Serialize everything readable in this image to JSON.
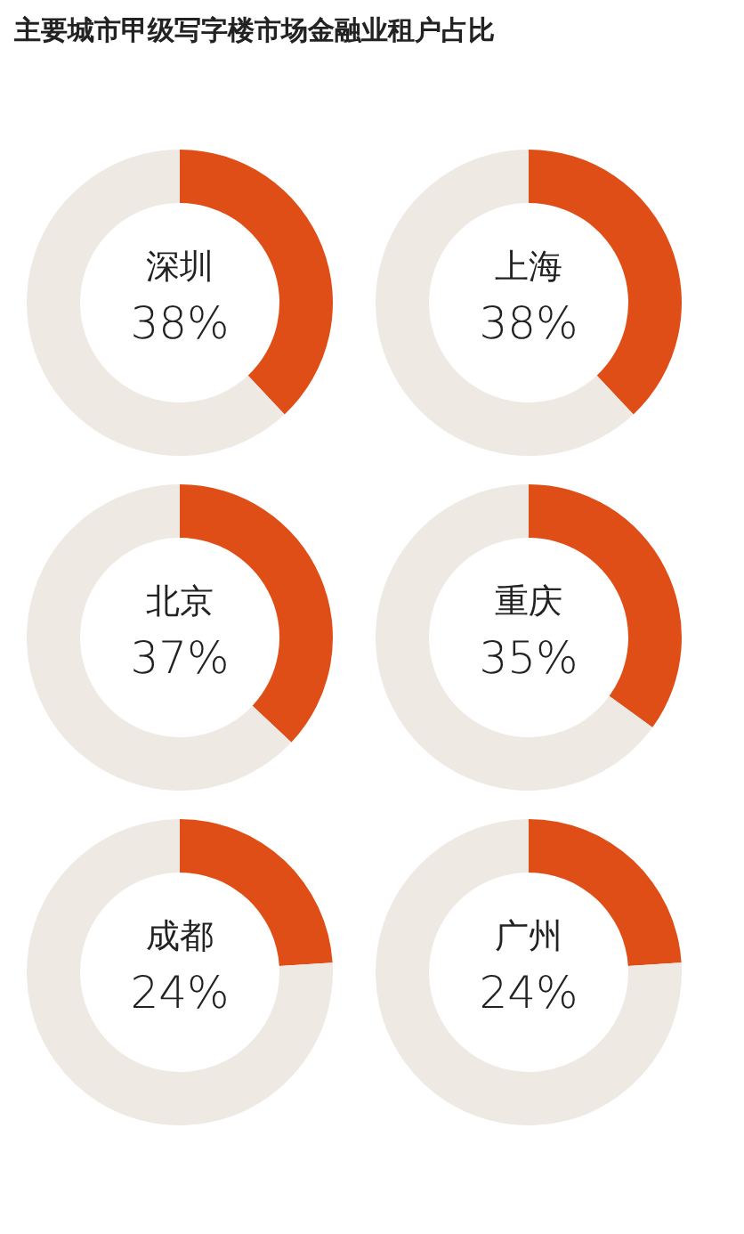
{
  "chart_data": [
    {
      "type": "other",
      "title": "主要城市甲级写字楼市场金融业租户占比"
    },
    {
      "type": "donut",
      "title": "深圳",
      "values": [
        38,
        62
      ],
      "colors": [
        "#e04e17",
        "#efe9e4"
      ],
      "annotations": [
        "38%"
      ]
    },
    {
      "type": "donut",
      "title": "上海",
      "values": [
        38,
        62
      ],
      "colors": [
        "#e04e17",
        "#efe9e4"
      ],
      "annotations": [
        "38%"
      ]
    },
    {
      "type": "donut",
      "title": "北京",
      "values": [
        37,
        63
      ],
      "colors": [
        "#e04e17",
        "#efe9e4"
      ],
      "annotations": [
        "37%"
      ]
    },
    {
      "type": "donut",
      "title": "重庆",
      "values": [
        35,
        65
      ],
      "colors": [
        "#e04e17",
        "#efe9e4"
      ],
      "annotations": [
        "35%"
      ]
    },
    {
      "type": "donut",
      "title": "成都",
      "values": [
        24,
        76
      ],
      "colors": [
        "#e04e17",
        "#efe9e4"
      ],
      "annotations": [
        "24%"
      ]
    },
    {
      "type": "donut",
      "title": "广州",
      "values": [
        24,
        76
      ],
      "colors": [
        "#e04e17",
        "#efe9e4"
      ],
      "annotations": [
        "24%"
      ]
    }
  ]
}
